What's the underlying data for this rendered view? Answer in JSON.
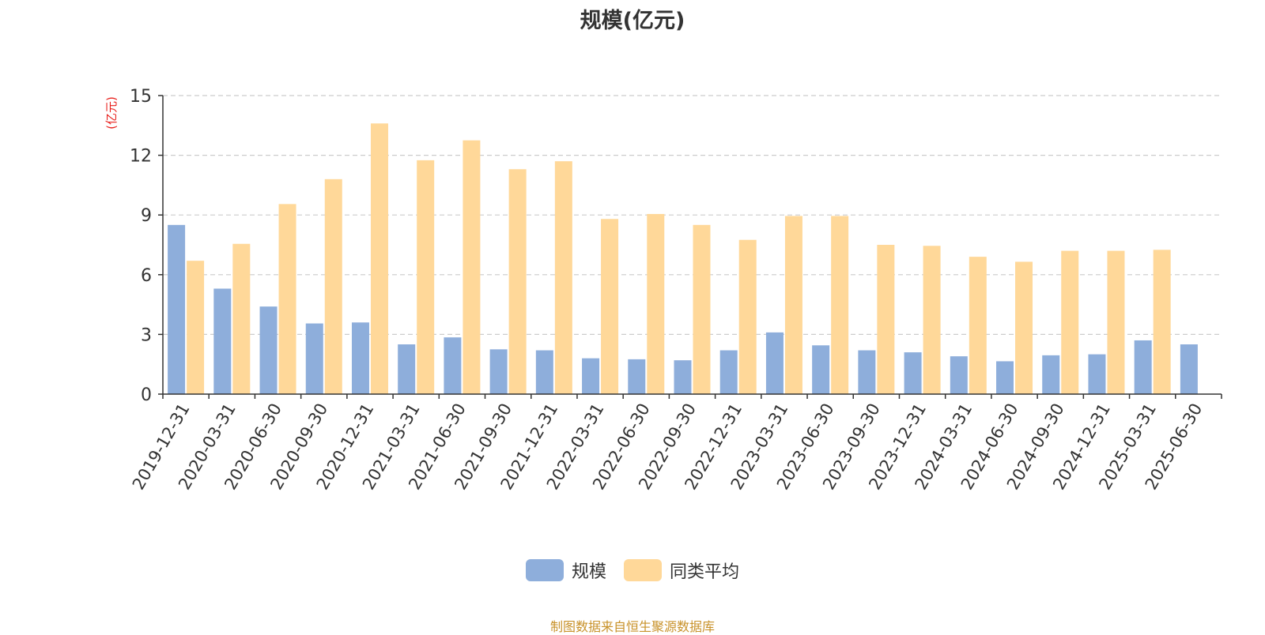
{
  "chart_data": {
    "type": "bar",
    "title": "规模(亿元)",
    "ylabel": "(亿元)",
    "xlabel": "",
    "ylim": [
      0,
      15
    ],
    "yticks": [
      "0",
      "3",
      "6",
      "9",
      "12",
      "15"
    ],
    "grid": true,
    "legend_position": "bottom",
    "categories": [
      "2019-12-31",
      "2020-03-31",
      "2020-06-30",
      "2020-09-30",
      "2020-12-31",
      "2021-03-31",
      "2021-06-30",
      "2021-09-30",
      "2021-12-31",
      "2022-03-31",
      "2022-06-30",
      "2022-09-30",
      "2022-12-31",
      "2023-03-31",
      "2023-06-30",
      "2023-09-30",
      "2023-12-31",
      "2024-03-31",
      "2024-06-30",
      "2024-09-30",
      "2024-12-31",
      "2025-03-31",
      "2025-06-30"
    ],
    "series": [
      {
        "name": "规模",
        "color": "#8eaedb",
        "values": [
          8.5,
          5.3,
          4.4,
          3.55,
          3.6,
          2.5,
          2.85,
          2.25,
          2.2,
          1.8,
          1.75,
          1.7,
          2.2,
          3.1,
          2.45,
          2.2,
          2.1,
          1.9,
          1.65,
          1.95,
          2.0,
          2.7,
          2.5
        ]
      },
      {
        "name": "同类平均",
        "color": "#ffd899",
        "values": [
          6.7,
          7.55,
          9.55,
          10.8,
          13.6,
          11.75,
          12.75,
          11.3,
          11.7,
          8.8,
          9.05,
          8.5,
          7.75,
          8.95,
          8.95,
          7.5,
          7.45,
          6.9,
          6.65,
          7.2,
          7.2,
          7.25,
          null
        ]
      }
    ]
  },
  "source_note": "制图数据来自恒生聚源数据库",
  "colors": {
    "ylabel": "#e8201c",
    "axis": "#333333",
    "grid": "#cccccc",
    "source": "#c8922a"
  }
}
